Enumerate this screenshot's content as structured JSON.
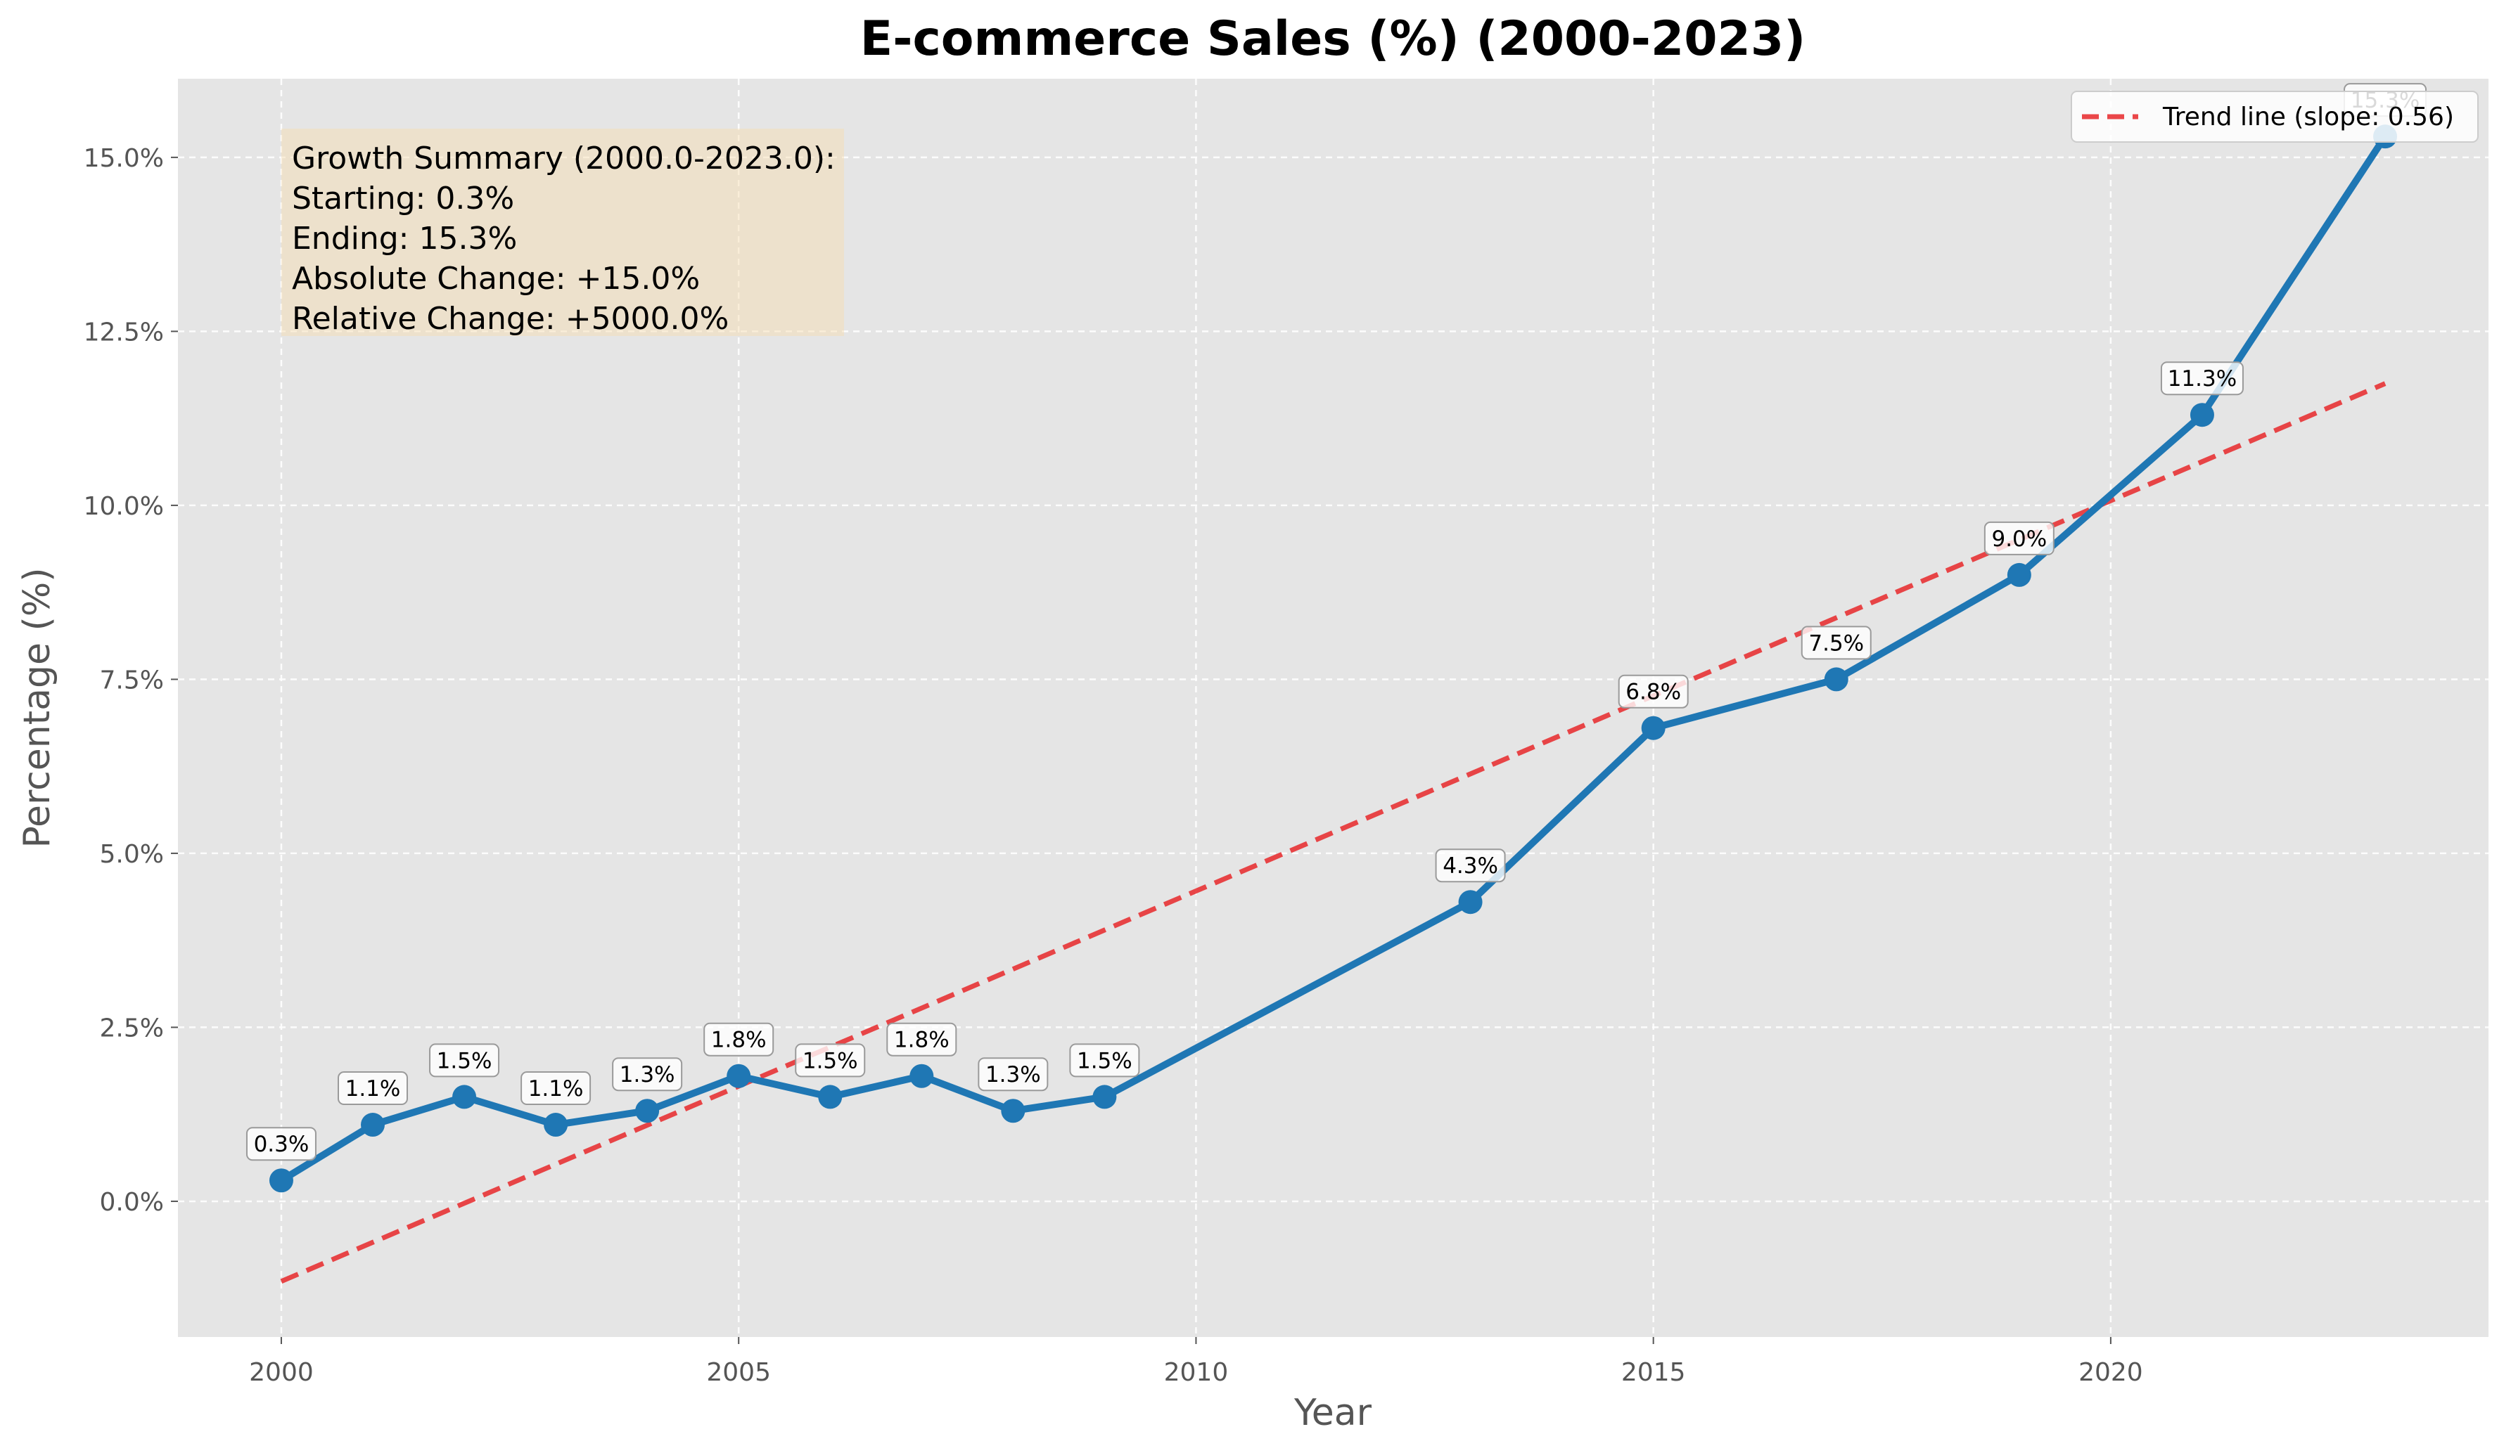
{
  "chart_data": {
    "type": "line",
    "title": "E-commerce Sales (%) (2000-2023)",
    "xlabel": "Year",
    "ylabel": "Percentage (%)",
    "xlim": [
      1998.87,
      2024.13
    ],
    "ylim": [
      -1.95,
      16.13
    ],
    "xticks": [
      2000,
      2005,
      2010,
      2015,
      2020
    ],
    "xtick_labels": [
      "2000",
      "2005",
      "2010",
      "2015",
      "2020"
    ],
    "yticks": [
      0,
      2.5,
      5,
      7.5,
      10,
      12.5,
      15
    ],
    "ytick_labels": [
      "0.0%",
      "2.5%",
      "5.0%",
      "7.5%",
      "10.0%",
      "12.5%",
      "15.0%"
    ],
    "grid": true,
    "legend_position": "top-right",
    "series": [
      {
        "name": "E-commerce Sales (%)",
        "color": "#1f77b4",
        "x": [
          2000,
          2001,
          2002,
          2003,
          2004,
          2005,
          2006,
          2007,
          2008,
          2009,
          2013,
          2015,
          2017,
          2019,
          2021,
          2023
        ],
        "values": [
          0.3,
          1.1,
          1.5,
          1.1,
          1.3,
          1.8,
          1.5,
          1.8,
          1.3,
          1.5,
          4.3,
          6.8,
          7.5,
          9.0,
          11.3,
          15.3
        ],
        "labels": [
          "0.3%",
          "1.1%",
          "1.5%",
          "1.1%",
          "1.3%",
          "1.8%",
          "1.5%",
          "1.8%",
          "1.3%",
          "1.5%",
          "4.3%",
          "6.8%",
          "7.5%",
          "9.0%",
          "11.3%",
          "15.3%"
        ]
      }
    ],
    "trend_line": {
      "label": "Trend line (slope: 0.56)",
      "color": "#e8282b",
      "x": [
        2000,
        2023
      ],
      "y": [
        -1.15,
        11.75
      ]
    },
    "annotation": {
      "lines": [
        "Growth Summary (2000.0-2023.0):",
        "Starting: 0.3%",
        "Ending: 15.3%",
        "Absolute Change: +15.0%",
        "Relative Change: +5000.0%"
      ]
    },
    "colors": {
      "plot_background": "#e5e5e5",
      "grid": "#ffffff",
      "annotation_box": "#f5deb3"
    }
  }
}
